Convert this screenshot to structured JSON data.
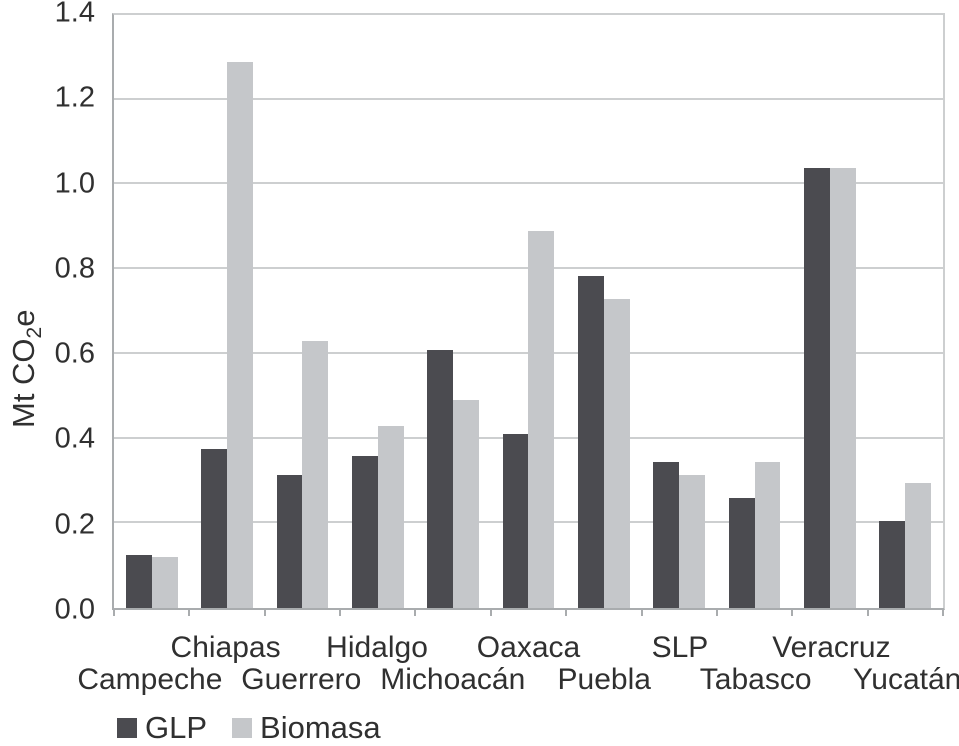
{
  "figure": {
    "background": "#ffffff",
    "y_axis": {
      "title_pre": "Mt CO",
      "title_sub": "2",
      "title_post": "e",
      "tick_labels": [
        "0.0",
        "0.2",
        "0.4",
        "0.6",
        "0.8",
        "1.0",
        "1.2",
        "1.4"
      ]
    },
    "colors": {
      "axis_line": "#a9acae",
      "gridline": "#cdcfd0",
      "text": "#303030"
    }
  },
  "chart_data": {
    "type": "bar",
    "title": "",
    "xlabel": "",
    "ylabel": "Mt CO₂e",
    "ylim": [
      0,
      1.4
    ],
    "yticks": [
      0,
      0.2,
      0.4,
      0.6,
      0.8,
      1.0,
      1.2,
      1.4
    ],
    "grid": true,
    "legend_position": "bottom-left",
    "categories": [
      "Campeche",
      "Chiapas",
      "Guerrero",
      "Hidalgo",
      "Michoacán",
      "Oaxaca",
      "Puebla",
      "SLP",
      "Tabasco",
      "Veracruz",
      "Yucatán"
    ],
    "series": [
      {
        "name": "GLP",
        "color": "#4b4b50",
        "values": [
          0.125,
          0.375,
          0.315,
          0.36,
          0.61,
          0.41,
          0.785,
          0.345,
          0.26,
          1.04,
          0.205
        ]
      },
      {
        "name": "Biomasa",
        "color": "#c5c7ca",
        "values": [
          0.12,
          1.29,
          0.63,
          0.43,
          0.49,
          0.89,
          0.73,
          0.315,
          0.345,
          1.04,
          0.295
        ]
      }
    ]
  }
}
